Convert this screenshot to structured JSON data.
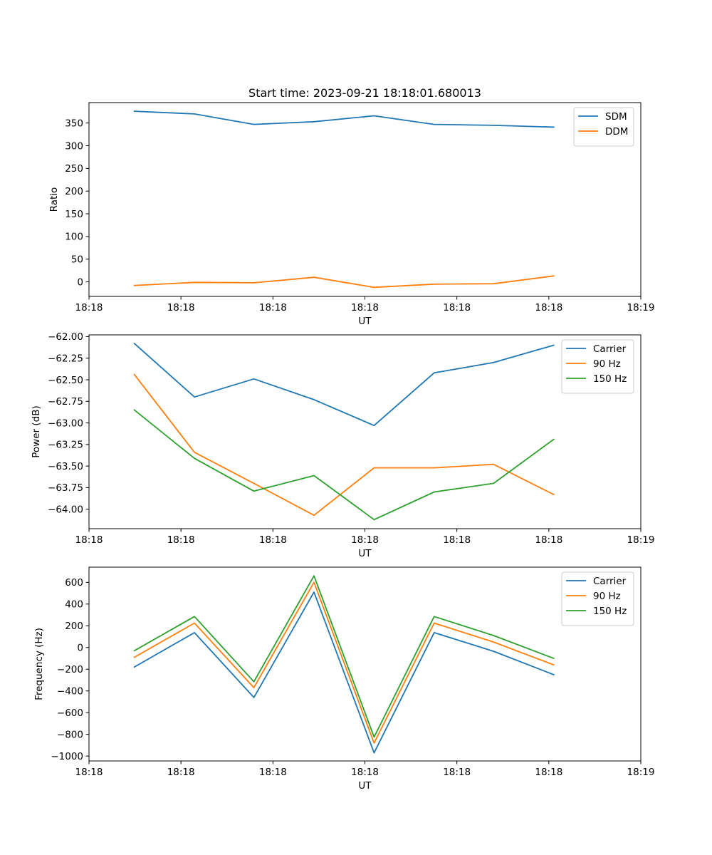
{
  "chart_data": [
    {
      "type": "line",
      "title": "Start time: 2023-09-21 18:18:01.680013",
      "xlabel": "UT",
      "ylabel": "Ratio",
      "xlim": [
        0,
        9
      ],
      "ylim": [
        -32,
        395
      ],
      "x_ticks": [
        0,
        1.5,
        3,
        4.5,
        6,
        7.5,
        9
      ],
      "x_tick_labels": [
        "18:18",
        "18:18",
        "18:18",
        "18:18",
        "18:18",
        "18:18",
        "18:19"
      ],
      "y_ticks": [
        0,
        50,
        100,
        150,
        200,
        250,
        300,
        350
      ],
      "y_tick_labels": [
        "0",
        "50",
        "100",
        "150",
        "200",
        "250",
        "300",
        "350"
      ],
      "legend_position": "top-right",
      "x": [
        0.74,
        1.72,
        2.69,
        3.67,
        4.65,
        5.63,
        6.6,
        7.58
      ],
      "series": [
        {
          "name": "SDM",
          "color": "#1f77b4",
          "values": [
            376,
            370,
            347,
            353,
            366,
            347,
            345,
            341
          ]
        },
        {
          "name": "DDM",
          "color": "#ff7f0e",
          "values": [
            -8,
            -1,
            -2,
            10,
            -12,
            -5,
            -4,
            13
          ]
        }
      ]
    },
    {
      "type": "line",
      "title": "",
      "xlabel": "UT",
      "ylabel": "Power (dB)",
      "xlim": [
        0,
        9
      ],
      "ylim": [
        -64.225,
        -61.98
      ],
      "x_ticks": [
        0,
        1.5,
        3,
        4.5,
        6,
        7.5,
        9
      ],
      "x_tick_labels": [
        "18:18",
        "18:18",
        "18:18",
        "18:18",
        "18:18",
        "18:18",
        "18:19"
      ],
      "y_ticks": [
        -64.0,
        -63.75,
        -63.5,
        -63.25,
        -63.0,
        -62.75,
        -62.5,
        -62.25,
        -62.0
      ],
      "y_tick_labels": [
        "−64.00",
        "−63.75",
        "−63.50",
        "−63.25",
        "−63.00",
        "−62.75",
        "−62.50",
        "−62.25",
        "−62.00"
      ],
      "legend_position": "top-right",
      "x": [
        0.74,
        1.72,
        2.69,
        3.67,
        4.65,
        5.63,
        6.6,
        7.58
      ],
      "series": [
        {
          "name": "Carrier",
          "color": "#1f77b4",
          "values": [
            -62.08,
            -62.7,
            -62.49,
            -62.73,
            -63.03,
            -62.42,
            -62.3,
            -62.1
          ]
        },
        {
          "name": "90 Hz",
          "color": "#ff7f0e",
          "values": [
            -62.44,
            -63.34,
            -63.7,
            -64.07,
            -63.52,
            -63.52,
            -63.48,
            -63.83
          ]
        },
        {
          "name": "150 Hz",
          "color": "#2ca02c",
          "values": [
            -62.85,
            -63.41,
            -63.79,
            -63.61,
            -64.12,
            -63.8,
            -63.7,
            -63.19
          ]
        }
      ]
    },
    {
      "type": "line",
      "title": "",
      "xlabel": "UT",
      "ylabel": "Frequency (Hz)",
      "xlim": [
        0,
        9
      ],
      "ylim": [
        -1045,
        740
      ],
      "x_ticks": [
        0,
        1.5,
        3,
        4.5,
        6,
        7.5,
        9
      ],
      "x_tick_labels": [
        "18:18",
        "18:18",
        "18:18",
        "18:18",
        "18:18",
        "18:18",
        "18:19"
      ],
      "y_ticks": [
        -1000,
        -800,
        -600,
        -400,
        -200,
        0,
        200,
        400,
        600
      ],
      "y_tick_labels": [
        "−1000",
        "−800",
        "−600",
        "−400",
        "−200",
        "0",
        "200",
        "400",
        "600"
      ],
      "legend_position": "top-right",
      "x": [
        0.74,
        1.72,
        2.69,
        3.67,
        4.65,
        5.63,
        6.6,
        7.58
      ],
      "series": [
        {
          "name": "Carrier",
          "color": "#1f77b4",
          "values": [
            -180,
            137,
            -460,
            510,
            -970,
            137,
            -35,
            -250
          ]
        },
        {
          "name": "90 Hz",
          "color": "#ff7f0e",
          "values": [
            -90,
            225,
            -370,
            600,
            -880,
            225,
            50,
            -160
          ]
        },
        {
          "name": "150 Hz",
          "color": "#2ca02c",
          "values": [
            -30,
            285,
            -315,
            660,
            -825,
            285,
            110,
            -100
          ]
        }
      ]
    }
  ]
}
